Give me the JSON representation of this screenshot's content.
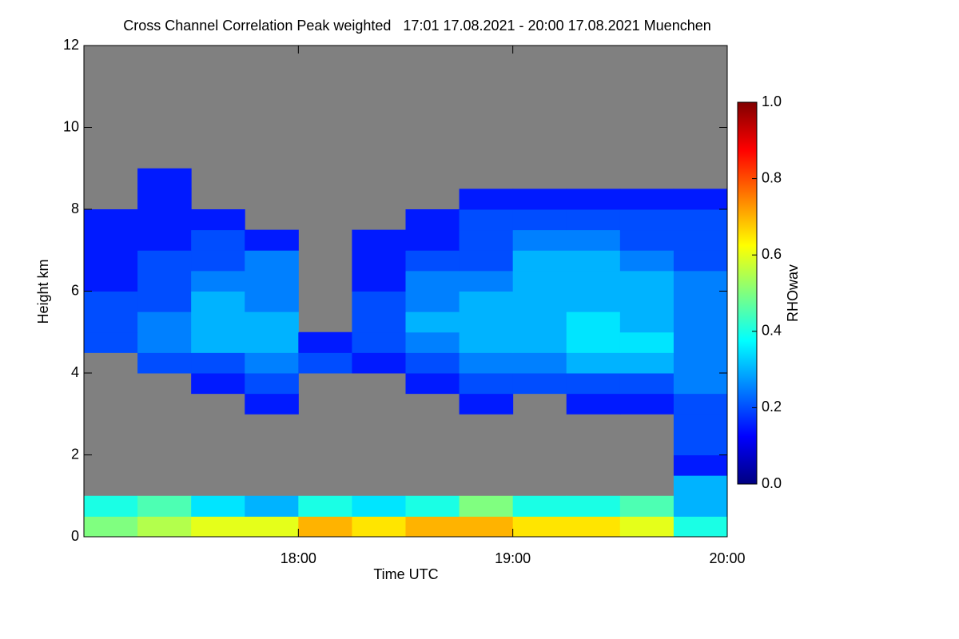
{
  "chart_data": {
    "type": "heatmap",
    "title": "Cross Channel Correlation Peak weighted   17:01 17.08.2021 - 20:00 17.08.2021 Muenchen",
    "x_label": "Time UTC",
    "y_label": "Height km",
    "colorbar_label": "RHOwav",
    "xlim": [
      17,
      20
    ],
    "xticks": [
      {
        "value": 18,
        "label": "18:00"
      },
      {
        "value": 19,
        "label": "19:00"
      },
      {
        "value": 20,
        "label": "20:00"
      }
    ],
    "ylim": [
      0,
      12
    ],
    "yticks": [
      0,
      2,
      4,
      6,
      8,
      10,
      12
    ],
    "zlim": [
      0,
      1
    ],
    "zticks": [
      {
        "value": 0,
        "label": "0.0"
      },
      {
        "value": 0.2,
        "label": "0.2"
      },
      {
        "value": 0.4,
        "label": "0.4"
      },
      {
        "value": 0.6,
        "label": "0.6"
      },
      {
        "value": 0.8,
        "label": "0.8"
      },
      {
        "value": 1,
        "label": "1.0"
      }
    ],
    "colormap": "jet",
    "no_data_color": "#808080",
    "x_bins": [
      17,
      17.25,
      17.5,
      17.75,
      18,
      18.25,
      18.5,
      18.75,
      19,
      19.25,
      19.5,
      19.75,
      20
    ],
    "y_bins": [
      0,
      0.5,
      1,
      1.5,
      2,
      2.5,
      3,
      3.5,
      4,
      4.5,
      5,
      5.5,
      6,
      6.5,
      7,
      7.5,
      8,
      8.5,
      9
    ],
    "z": [
      [
        0.5,
        0.55,
        0.6,
        0.6,
        0.7,
        0.65,
        0.7,
        0.7,
        0.65,
        0.65,
        0.6,
        0.4
      ],
      [
        0.4,
        0.45,
        0.35,
        0.3,
        0.4,
        0.35,
        0.4,
        0.5,
        0.4,
        0.4,
        0.45,
        0.3
      ],
      [
        null,
        null,
        null,
        null,
        null,
        null,
        null,
        null,
        null,
        null,
        null,
        0.3
      ],
      [
        null,
        null,
        null,
        null,
        null,
        null,
        null,
        null,
        null,
        null,
        null,
        0.15
      ],
      [
        null,
        null,
        null,
        null,
        null,
        null,
        null,
        null,
        null,
        null,
        null,
        0.2
      ],
      [
        null,
        null,
        null,
        null,
        null,
        null,
        null,
        null,
        null,
        null,
        null,
        0.2
      ],
      [
        null,
        null,
        null,
        0.15,
        null,
        null,
        null,
        0.15,
        null,
        0.15,
        0.15,
        0.2
      ],
      [
        null,
        null,
        0.15,
        0.2,
        null,
        null,
        0.15,
        0.2,
        0.2,
        0.2,
        0.2,
        0.25
      ],
      [
        null,
        0.2,
        0.2,
        0.25,
        0.2,
        0.15,
        0.2,
        0.25,
        0.25,
        0.3,
        0.3,
        0.25
      ],
      [
        0.2,
        0.25,
        0.3,
        0.3,
        0.15,
        0.2,
        0.25,
        0.3,
        0.3,
        0.35,
        0.35,
        0.25
      ],
      [
        0.2,
        0.25,
        0.3,
        0.3,
        null,
        0.2,
        0.3,
        0.3,
        0.3,
        0.35,
        0.3,
        0.25
      ],
      [
        0.2,
        0.2,
        0.3,
        0.25,
        null,
        0.2,
        0.25,
        0.3,
        0.3,
        0.3,
        0.3,
        0.25
      ],
      [
        0.15,
        0.2,
        0.25,
        0.25,
        null,
        0.15,
        0.25,
        0.25,
        0.3,
        0.3,
        0.3,
        0.25
      ],
      [
        0.15,
        0.2,
        0.2,
        0.25,
        null,
        0.15,
        0.2,
        0.2,
        0.3,
        0.3,
        0.25,
        0.2
      ],
      [
        0.15,
        0.15,
        0.2,
        0.15,
        null,
        0.15,
        0.15,
        0.2,
        0.25,
        0.25,
        0.2,
        0.2
      ],
      [
        0.15,
        0.15,
        0.15,
        null,
        null,
        null,
        0.15,
        0.2,
        0.2,
        0.2,
        0.2,
        0.2
      ],
      [
        null,
        0.15,
        null,
        null,
        null,
        null,
        null,
        0.15,
        0.15,
        0.15,
        0.15,
        0.15
      ],
      [
        null,
        0.15,
        null,
        null,
        null,
        null,
        null,
        null,
        null,
        null,
        null,
        null
      ]
    ]
  }
}
